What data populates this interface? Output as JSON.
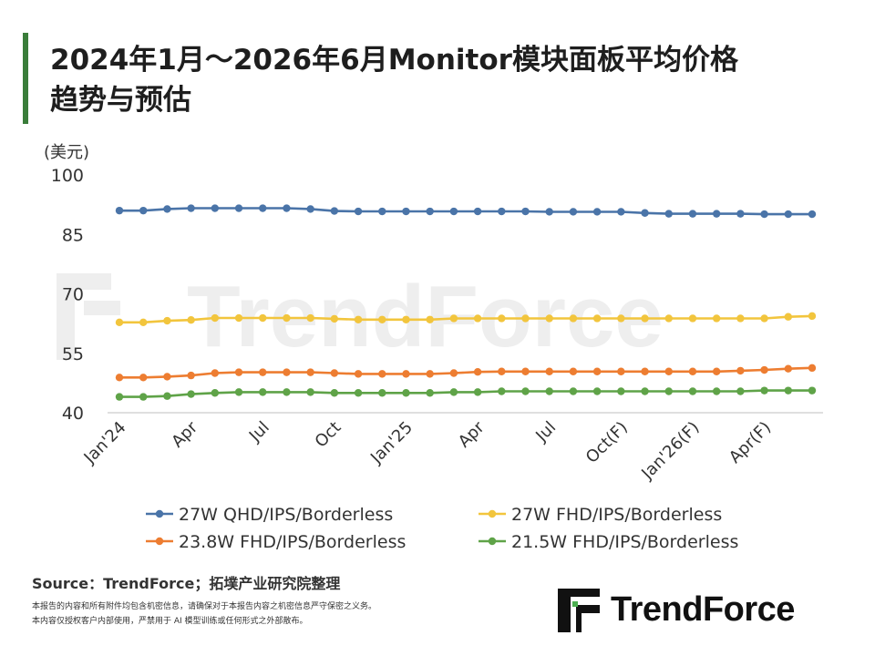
{
  "title_line1": "2024年1月～2026年6月Monitor模块面板平均价格",
  "title_line2": "趋势与预估",
  "source": "Source：TrendForce；拓墣产业研究院整理",
  "disclaimer_1": "本报告的内容和所有附件均包含机密信息，请确保对于本报告内容之机密信息严守保密之义务。",
  "disclaimer_2": "本内容仅授权客户内部使用，严禁用于 AI 模型训练或任何形式之外部散布。",
  "logo_text": "TrendForce",
  "watermark_text": "TrendForce",
  "chart_data": {
    "type": "line",
    "unit_label": "(美元)",
    "ylim": [
      40,
      100
    ],
    "yticks": [
      40,
      55,
      70,
      85,
      100
    ],
    "x": [
      "Jan'24",
      "Feb'24",
      "Mar'24",
      "Apr",
      "May'24",
      "Jun'24",
      "Jul",
      "Aug'24",
      "Sep'24",
      "Oct",
      "Nov'24",
      "Dec'24",
      "Jan'25",
      "Feb'25",
      "Mar'25",
      "Apr",
      "May'25",
      "Jun'25",
      "Jul",
      "Aug'25",
      "Sep'25",
      "Oct(F)",
      "Nov(F)",
      "Dec(F)",
      "Jan'26(F)",
      "Feb'26(F)",
      "Mar'26(F)",
      "Apr(F)",
      "May(F)",
      "Jun(F)"
    ],
    "xtick_labels": [
      {
        "index": 0,
        "label": "Jan'24"
      },
      {
        "index": 3,
        "label": "Apr"
      },
      {
        "index": 6,
        "label": "Jul"
      },
      {
        "index": 9,
        "label": "Oct"
      },
      {
        "index": 12,
        "label": "Jan'25"
      },
      {
        "index": 15,
        "label": "Apr"
      },
      {
        "index": 18,
        "label": "Jul"
      },
      {
        "index": 21,
        "label": "Oct(F)"
      },
      {
        "index": 24,
        "label": "Jan'26(F)"
      },
      {
        "index": 27,
        "label": "Apr(F)"
      }
    ],
    "grid": false,
    "legend_position": "bottom",
    "series": [
      {
        "name": "27W QHD/IPS/Borderless",
        "color": "#4a74a8",
        "values": [
          91.0,
          91.0,
          91.4,
          91.6,
          91.6,
          91.6,
          91.6,
          91.6,
          91.4,
          90.9,
          90.8,
          90.8,
          90.8,
          90.8,
          90.8,
          90.8,
          90.8,
          90.8,
          90.7,
          90.7,
          90.7,
          90.7,
          90.4,
          90.2,
          90.2,
          90.2,
          90.2,
          90.1,
          90.1,
          90.1
        ]
      },
      {
        "name": "27W FHD/IPS/Borderless",
        "color": "#f2c53d",
        "values": [
          62.8,
          62.8,
          63.2,
          63.4,
          63.9,
          63.9,
          63.9,
          63.9,
          63.9,
          63.7,
          63.5,
          63.5,
          63.5,
          63.5,
          63.8,
          63.8,
          63.8,
          63.8,
          63.8,
          63.8,
          63.8,
          63.8,
          63.8,
          63.8,
          63.8,
          63.8,
          63.8,
          63.8,
          64.2,
          64.4
        ]
      },
      {
        "name": "23.8W FHD/IPS/Borderless",
        "color": "#ed7d31",
        "values": [
          48.9,
          48.9,
          49.1,
          49.4,
          50.0,
          50.2,
          50.2,
          50.2,
          50.2,
          50.0,
          49.8,
          49.8,
          49.8,
          49.8,
          50.0,
          50.3,
          50.4,
          50.4,
          50.4,
          50.4,
          50.4,
          50.4,
          50.4,
          50.4,
          50.4,
          50.4,
          50.6,
          50.8,
          51.1,
          51.3
        ]
      },
      {
        "name": "21.5W FHD/IPS/Borderless",
        "color": "#5fa348",
        "values": [
          44.0,
          44.0,
          44.2,
          44.7,
          45.0,
          45.2,
          45.2,
          45.2,
          45.2,
          45.0,
          45.0,
          45.0,
          45.0,
          45.0,
          45.2,
          45.2,
          45.4,
          45.4,
          45.4,
          45.4,
          45.4,
          45.4,
          45.4,
          45.4,
          45.4,
          45.4,
          45.4,
          45.6,
          45.6,
          45.6
        ]
      }
    ]
  }
}
